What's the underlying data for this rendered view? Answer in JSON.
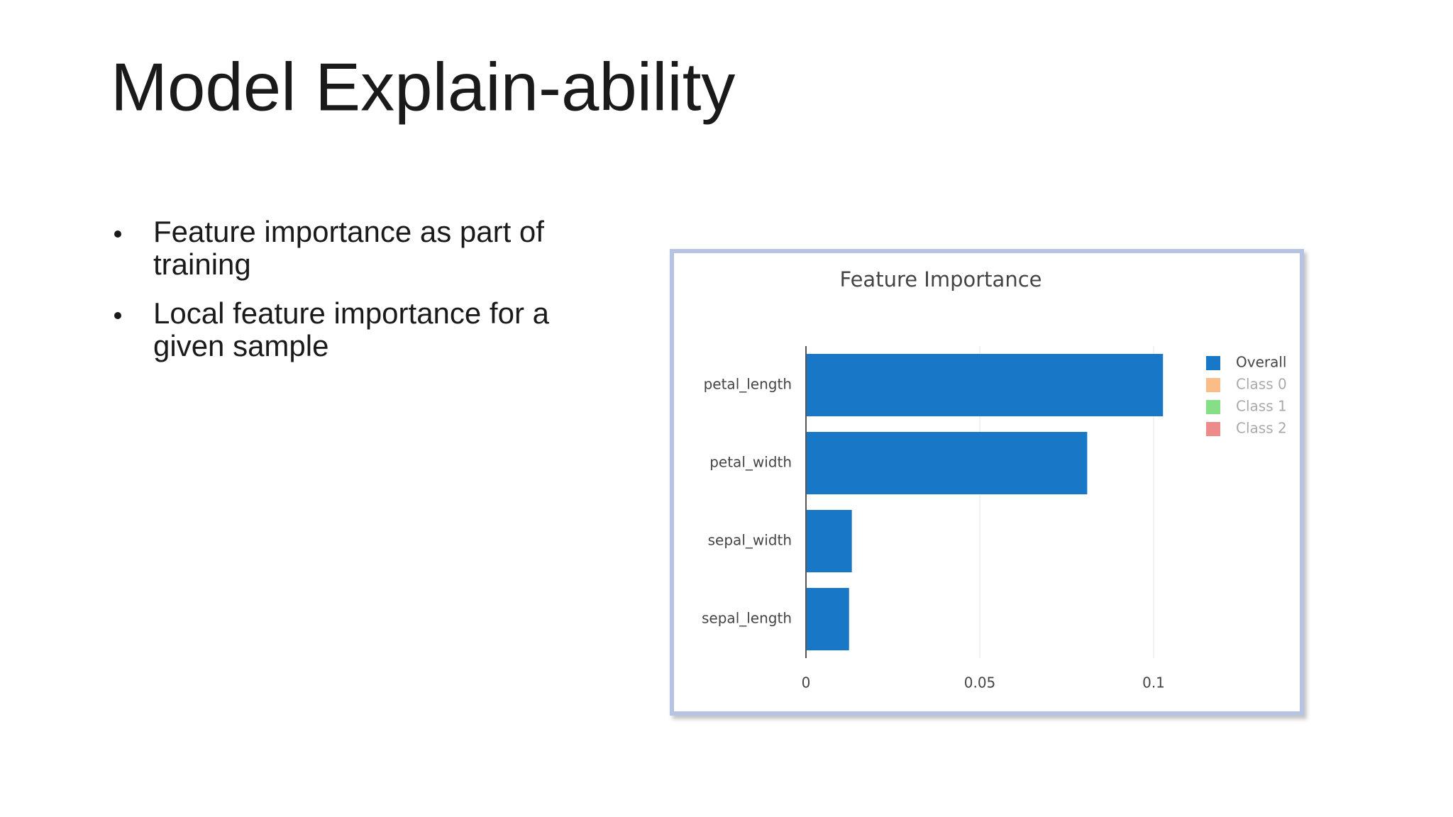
{
  "slide": {
    "title": "Model Explain-ability",
    "bullets": [
      [
        "Feature importance as part of",
        "training"
      ],
      [
        "Local feature importance for a",
        "given sample"
      ]
    ]
  },
  "chart_data": {
    "type": "hbar",
    "title": "Feature Importance",
    "categories": [
      "petal_length",
      "petal_width",
      "sepal_width",
      "sepal_length"
    ],
    "series": [
      {
        "name": "Overall",
        "color": "#1877c6",
        "values": [
          0.1027,
          0.0809,
          0.0132,
          0.0124
        ]
      }
    ],
    "hidden_series": [
      {
        "name": "Class 0",
        "color": "#fbbd88"
      },
      {
        "name": "Class 1",
        "color": "#86df86"
      },
      {
        "name": "Class 2",
        "color": "#ee8a8a"
      }
    ],
    "xlim": [
      0,
      0.103
    ],
    "xticks": [
      0,
      0.05,
      0.1
    ],
    "grid": true,
    "legend": "right"
  }
}
